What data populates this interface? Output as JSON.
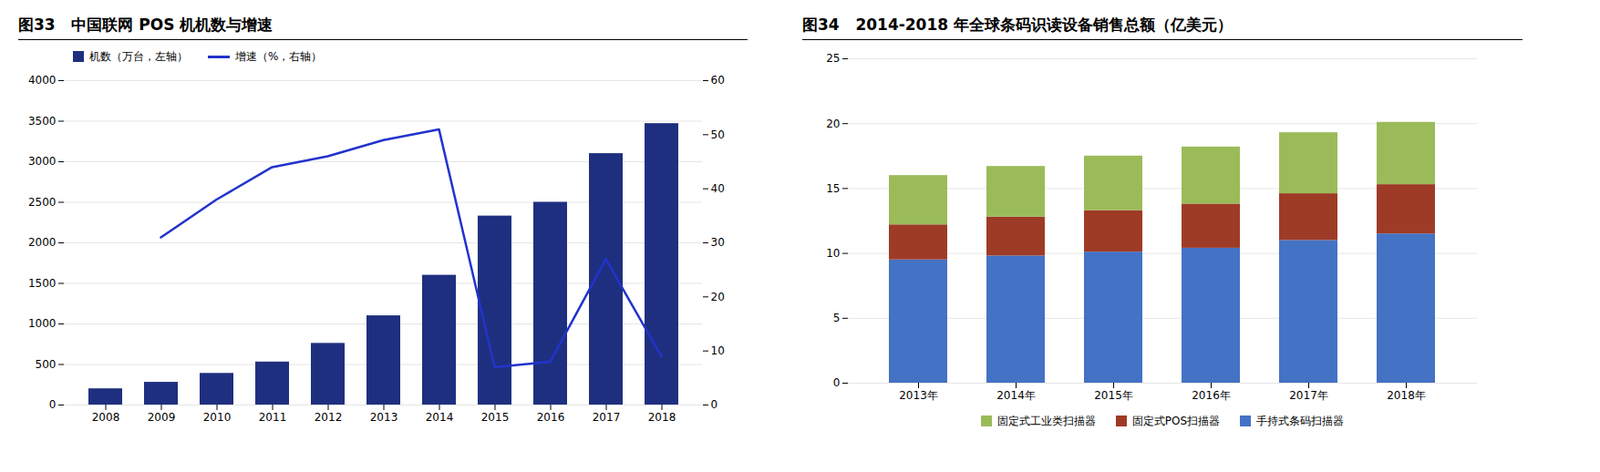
{
  "chart_data": [
    {
      "type": "bar",
      "title": "图33   中国联网 POS 机机数与增速",
      "categories": [
        "2008",
        "2009",
        "2010",
        "2011",
        "2012",
        "2013",
        "2014",
        "2015",
        "2016",
        "2017",
        "2018"
      ],
      "series": [
        {
          "name": "机数（万台，左轴）",
          "type": "bar",
          "color": "#1F2F7F",
          "values": [
            200,
            280,
            390,
            530,
            760,
            1100,
            1600,
            2330,
            2500,
            3100,
            3470
          ]
        },
        {
          "name": "增速（%，右轴）",
          "type": "line",
          "color": "#2233CC",
          "axis": "y2",
          "values": [
            null,
            31,
            38,
            44,
            46,
            49,
            51,
            7,
            8,
            27,
            9
          ]
        }
      ],
      "ylim": [
        0,
        4000
      ],
      "yticks": [
        0,
        500,
        1000,
        1500,
        2000,
        2500,
        3000,
        3500,
        4000
      ],
      "y2lim": [
        0,
        60
      ],
      "y2ticks": [
        0,
        10,
        20,
        30,
        40,
        50,
        60
      ],
      "grid": true,
      "legend": "upper left"
    },
    {
      "type": "bar",
      "title": "图34   2014-2018 年全球条码识读设备销售总额（亿美元）",
      "categories": [
        "2013年",
        "2014年",
        "2015年",
        "2016年",
        "2017年",
        "2018年"
      ],
      "series": [
        {
          "name": "手持式条码扫描器",
          "color": "#4472C4",
          "values": [
            9.5,
            9.8,
            10.1,
            10.4,
            11.0,
            11.5
          ]
        },
        {
          "name": "固定式POS扫描器",
          "color": "#9E3B26",
          "values": [
            2.7,
            3.0,
            3.2,
            3.4,
            3.6,
            3.8
          ]
        },
        {
          "name": "固定式工业类扫描器",
          "color": "#9BBB59",
          "values": [
            3.8,
            3.9,
            4.2,
            4.4,
            4.7,
            4.8
          ]
        }
      ],
      "stacked": true,
      "ylim": [
        0,
        25
      ],
      "yticks": [
        0,
        5,
        10,
        15,
        20,
        25
      ],
      "grid": true,
      "legend": "bottom"
    }
  ]
}
